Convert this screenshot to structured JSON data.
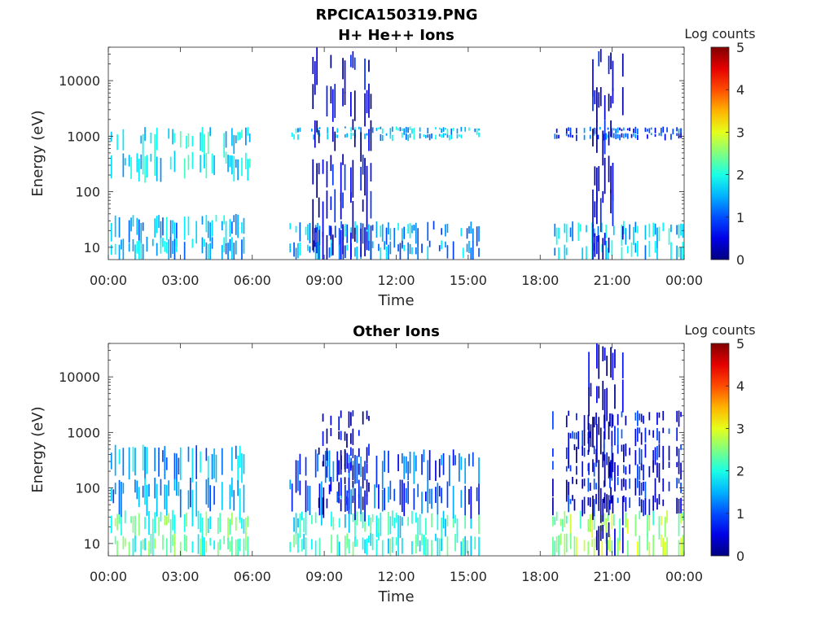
{
  "figure_title": "RPCICA150319.PNG",
  "chart_data": [
    {
      "type": "heatmap",
      "title": "H+ He++ Ions",
      "xlabel": "Time",
      "ylabel": "Energy (eV)",
      "yscale": "log",
      "ylim": [
        6,
        40000
      ],
      "yticks": [
        "10",
        "100",
        "1000",
        "10000"
      ],
      "xticks": [
        "00:00",
        "03:00",
        "06:00",
        "09:00",
        "12:00",
        "15:00",
        "18:00",
        "21:00",
        "00:00"
      ],
      "xlim_hours": [
        0,
        24
      ],
      "colorbar": {
        "label": "Log counts",
        "range": [
          0,
          5
        ],
        "ticks": [
          "0",
          "1",
          "2",
          "3",
          "4",
          "5"
        ],
        "colormap": "jet"
      },
      "data_intervals_hours": [
        [
          0.1,
          5.95
        ],
        [
          7.55,
          15.5
        ],
        [
          18.5,
          24.0
        ]
      ],
      "activity_bands": [
        {
          "t": [
            0.1,
            5.95
          ],
          "e": [
            6,
            40
          ],
          "log_counts": 1.5
        },
        {
          "t": [
            0.1,
            5.95
          ],
          "e": [
            200,
            1500
          ],
          "log_counts": 1.8
        },
        {
          "t": [
            7.55,
            15.5
          ],
          "e": [
            6,
            30
          ],
          "log_counts": 1.4
        },
        {
          "t": [
            7.55,
            15.5
          ],
          "e": [
            900,
            1500
          ],
          "log_counts": 1.6
        },
        {
          "t": [
            8.5,
            11.0
          ],
          "e": [
            6,
            40000
          ],
          "log_counts": 0.4
        },
        {
          "t": [
            18.5,
            24.0
          ],
          "e": [
            6,
            30
          ],
          "log_counts": 1.6
        },
        {
          "t": [
            18.5,
            24.0
          ],
          "e": [
            900,
            1500
          ],
          "log_counts": 1.0
        },
        {
          "t": [
            20.0,
            21.5
          ],
          "e": [
            6,
            40000
          ],
          "log_counts": 0.4
        }
      ]
    },
    {
      "type": "heatmap",
      "title": "Other Ions",
      "xlabel": "Time",
      "ylabel": "Energy (eV)",
      "yscale": "log",
      "ylim": [
        6,
        40000
      ],
      "yticks": [
        "10",
        "100",
        "1000",
        "10000"
      ],
      "xticks": [
        "00:00",
        "03:00",
        "06:00",
        "09:00",
        "12:00",
        "15:00",
        "18:00",
        "21:00",
        "00:00"
      ],
      "xlim_hours": [
        0,
        24
      ],
      "colorbar": {
        "label": "Log counts",
        "range": [
          0,
          5
        ],
        "ticks": [
          "0",
          "1",
          "2",
          "3",
          "4",
          "5"
        ],
        "colormap": "jet"
      },
      "data_intervals_hours": [
        [
          0.1,
          5.95
        ],
        [
          7.55,
          15.5
        ],
        [
          18.5,
          24.0
        ]
      ],
      "activity_bands": [
        {
          "t": [
            0.1,
            5.95
          ],
          "e": [
            6,
            40
          ],
          "log_counts": 2.2
        },
        {
          "t": [
            0.1,
            5.95
          ],
          "e": [
            40,
            600
          ],
          "log_counts": 1.4
        },
        {
          "t": [
            7.55,
            15.5
          ],
          "e": [
            6,
            40
          ],
          "log_counts": 2.0
        },
        {
          "t": [
            7.55,
            15.5
          ],
          "e": [
            40,
            500
          ],
          "log_counts": 1.0
        },
        {
          "t": [
            8.5,
            11.0
          ],
          "e": [
            40,
            2500
          ],
          "log_counts": 0.3
        },
        {
          "t": [
            18.5,
            24.0
          ],
          "e": [
            6,
            40
          ],
          "log_counts": 2.6
        },
        {
          "t": [
            18.5,
            24.0
          ],
          "e": [
            40,
            2500
          ],
          "log_counts": 0.6
        },
        {
          "t": [
            20.0,
            21.5
          ],
          "e": [
            6,
            40000
          ],
          "log_counts": 0.3
        }
      ]
    }
  ]
}
